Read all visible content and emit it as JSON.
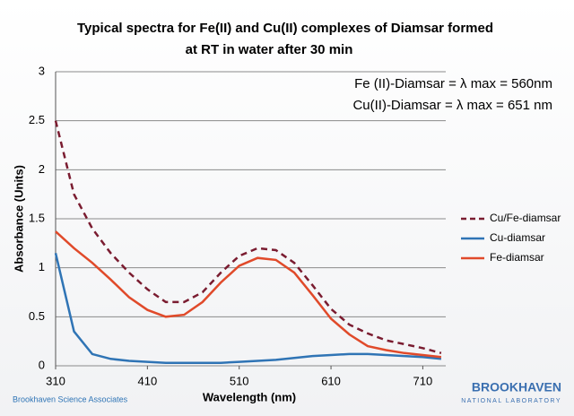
{
  "chart_data": {
    "type": "line",
    "title": [
      "Typical spectra for Fe(II) and Cu(II) complexes of  Diamsar formed",
      "at  RT in water after 30 min"
    ],
    "annotations": [
      "Fe (II)-Diamsar = λ max = 560nm",
      "Cu(II)-Diamsar = λ max = 651 nm"
    ],
    "xlabel": "Wavelength (nm)",
    "ylabel": "Absorbance (Units)",
    "x": [
      310,
      330,
      350,
      370,
      390,
      410,
      430,
      450,
      470,
      490,
      510,
      530,
      550,
      570,
      590,
      610,
      630,
      650,
      670,
      690,
      710,
      730
    ],
    "series": [
      {
        "name": "Cu/Fe-diamsar",
        "color": "#7a1c30",
        "style": "dashed",
        "values": [
          2.5,
          1.75,
          1.4,
          1.15,
          0.95,
          0.78,
          0.65,
          0.65,
          0.75,
          0.95,
          1.12,
          1.2,
          1.18,
          1.05,
          0.82,
          0.58,
          0.42,
          0.33,
          0.26,
          0.22,
          0.18,
          0.13
        ]
      },
      {
        "name": "Cu-diamsar",
        "color": "#2f74b5",
        "style": "solid",
        "values": [
          1.15,
          0.35,
          0.12,
          0.07,
          0.05,
          0.04,
          0.03,
          0.03,
          0.03,
          0.03,
          0.04,
          0.05,
          0.06,
          0.08,
          0.1,
          0.11,
          0.12,
          0.12,
          0.11,
          0.1,
          0.09,
          0.07
        ]
      },
      {
        "name": "Fe-diamsar",
        "color": "#e04a2a",
        "style": "solid",
        "values": [
          1.37,
          1.2,
          1.05,
          0.88,
          0.7,
          0.57,
          0.5,
          0.52,
          0.65,
          0.85,
          1.02,
          1.1,
          1.08,
          0.95,
          0.72,
          0.48,
          0.32,
          0.2,
          0.16,
          0.13,
          0.11,
          0.09
        ]
      }
    ],
    "xlim": [
      310,
      735
    ],
    "xticks": [
      310,
      410,
      510,
      610,
      710
    ],
    "ylim": [
      0,
      3
    ],
    "yticks": [
      0,
      0.5,
      1,
      1.5,
      2,
      2.5,
      3
    ],
    "grid": true,
    "legend": "right"
  },
  "footer": {
    "left": "Brookhaven Science Associates",
    "logo": "BROOKHAVEN",
    "logo_sub": "NATIONAL LABORATORY"
  }
}
